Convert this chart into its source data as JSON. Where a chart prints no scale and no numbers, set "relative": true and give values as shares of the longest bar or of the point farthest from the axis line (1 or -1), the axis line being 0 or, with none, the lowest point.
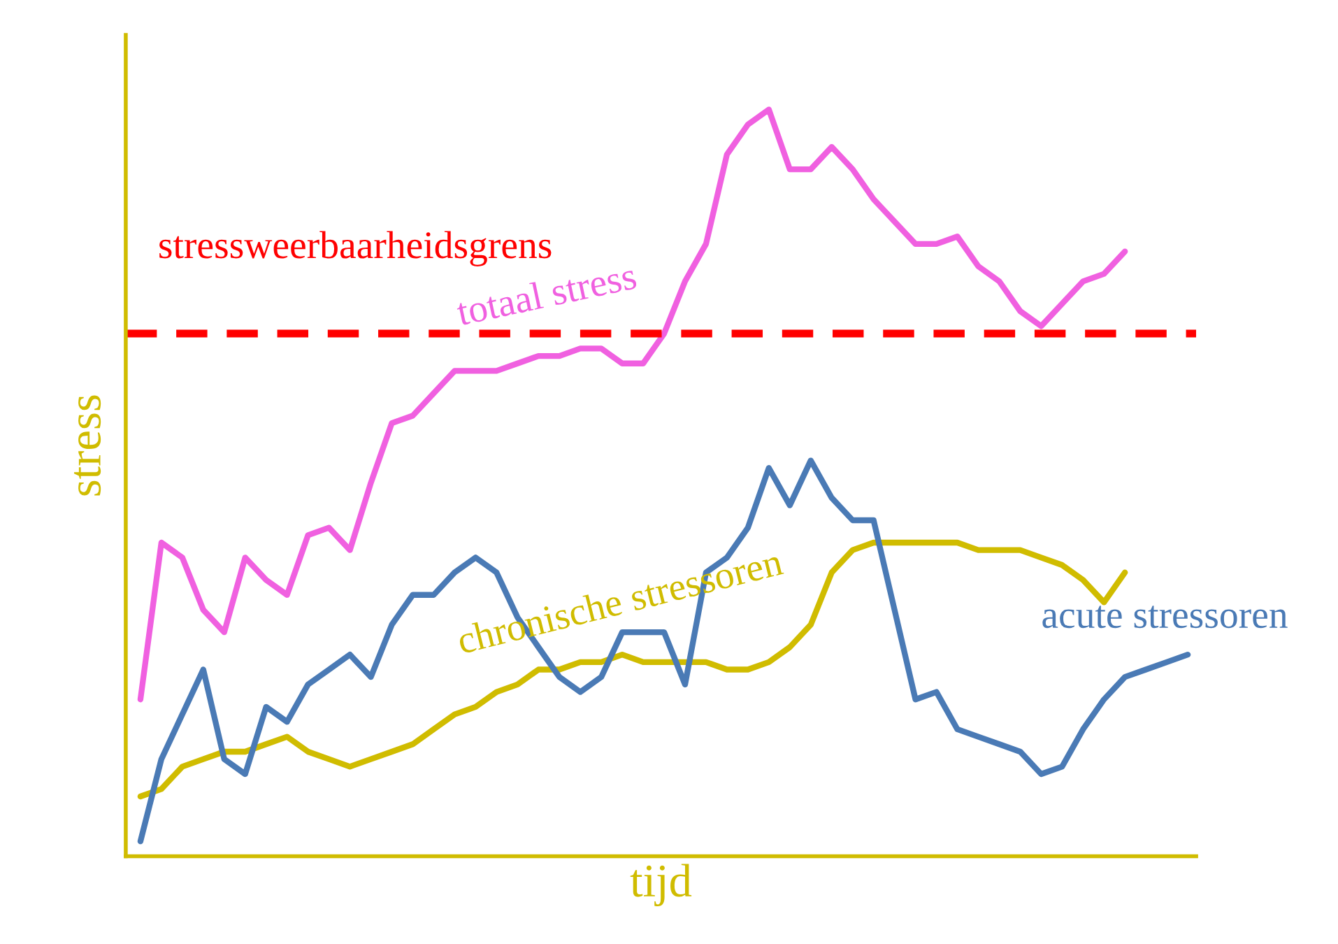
{
  "chart_data": {
    "type": "line",
    "relative": true,
    "xlabel": "tijd",
    "ylabel": "stress",
    "legend": false,
    "marker": "none",
    "line_style": "solid",
    "categories": [
      null,
      null,
      null,
      null,
      null,
      null,
      null,
      null,
      null,
      null,
      null,
      null,
      null,
      null,
      null,
      null,
      null,
      null,
      null,
      null,
      null,
      null,
      null,
      null,
      null,
      null,
      null,
      null,
      null,
      null,
      null,
      null,
      null,
      null,
      null,
      null,
      null,
      null,
      null,
      null,
      null,
      null,
      null,
      null,
      null,
      null,
      null,
      null,
      null,
      null,
      null
    ],
    "series": [
      {
        "name": "totaal stress",
        "color": "#f060e0",
        "values": [
          0.21,
          0.42,
          0.4,
          0.33,
          0.3,
          0.4,
          0.37,
          0.35,
          0.43,
          0.44,
          0.41,
          0.5,
          0.58,
          0.59,
          0.62,
          0.65,
          0.65,
          0.65,
          0.66,
          0.67,
          0.67,
          0.68,
          0.68,
          0.66,
          0.66,
          0.7,
          0.77,
          0.82,
          0.94,
          0.98,
          1.0,
          0.92,
          0.92,
          0.95,
          0.92,
          0.88,
          0.85,
          0.82,
          0.82,
          0.83,
          0.79,
          0.77,
          0.73,
          0.71,
          0.74,
          0.77,
          0.78,
          0.81,
          null,
          null,
          null
        ]
      },
      {
        "name": "chronische stressoren",
        "color": "#d0bc00",
        "values": [
          0.08,
          0.09,
          0.12,
          0.13,
          0.14,
          0.14,
          0.15,
          0.16,
          0.14,
          0.13,
          0.12,
          0.13,
          0.14,
          0.15,
          0.17,
          0.19,
          0.2,
          0.22,
          0.23,
          0.25,
          0.25,
          0.26,
          0.26,
          0.27,
          0.26,
          0.26,
          0.26,
          0.26,
          0.25,
          0.25,
          0.26,
          0.28,
          0.31,
          0.38,
          0.41,
          0.42,
          0.42,
          0.42,
          0.42,
          0.42,
          0.41,
          0.41,
          0.41,
          0.4,
          0.39,
          0.37,
          0.34,
          0.38,
          null,
          null,
          null
        ]
      },
      {
        "name": "acute stressoren",
        "color": "#4a7ab5",
        "values": [
          0.02,
          0.13,
          0.19,
          0.25,
          0.13,
          0.11,
          0.2,
          0.18,
          0.23,
          0.25,
          0.27,
          0.24,
          0.31,
          0.35,
          0.35,
          0.38,
          0.4,
          0.38,
          0.32,
          0.28,
          0.24,
          0.22,
          0.24,
          0.3,
          0.3,
          0.3,
          0.23,
          0.38,
          0.4,
          0.44,
          0.52,
          0.47,
          0.53,
          0.48,
          0.45,
          0.45,
          0.33,
          0.21,
          0.22,
          0.17,
          0.16,
          0.15,
          0.14,
          0.11,
          0.12,
          0.17,
          0.21,
          0.24,
          0.25,
          0.26,
          0.27
        ]
      }
    ],
    "ref_lines": [
      {
        "axis": "y",
        "value": 0.7,
        "label": "stressweerbaarheidsgrens",
        "color": "#ff0000",
        "line_style": "dashed"
      }
    ]
  }
}
